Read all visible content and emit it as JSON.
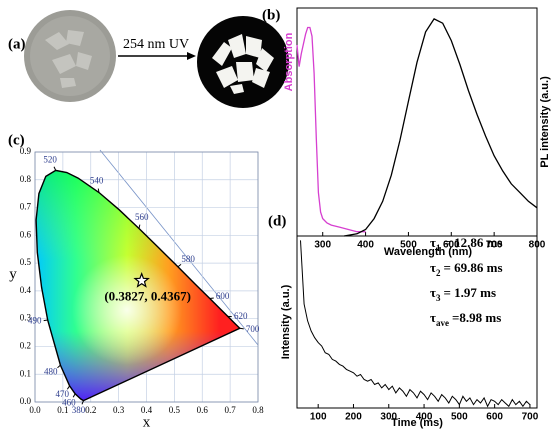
{
  "panel_a": {
    "label": "(a)",
    "arrow_text": "254 nm UV"
  },
  "chart_data": [
    {
      "type": "spectra",
      "label": "(b)",
      "xlabel": "Wavelength (nm)",
      "ylabel": "Absorption",
      "y2label": "PL intensity (a.u.)",
      "xlim": [
        240,
        800
      ],
      "xticks": [
        300,
        400,
        500,
        600,
        700,
        800
      ],
      "ylim": [
        0,
        1.05
      ],
      "y2lim": [
        0,
        1.05
      ],
      "series": [
        {
          "color": "#d63fd0",
          "x": [
            240,
            245,
            250,
            260,
            265,
            270,
            275,
            280,
            285,
            290,
            295,
            300,
            310,
            320,
            340,
            360,
            380,
            400
          ],
          "values": [
            0.88,
            0.78,
            0.84,
            0.93,
            0.96,
            0.96,
            0.92,
            0.75,
            0.45,
            0.2,
            0.11,
            0.08,
            0.06,
            0.05,
            0.04,
            0.03,
            0.02,
            0.02
          ]
        },
        {
          "color": "#000000",
          "axis": "y2",
          "x": [
            350,
            380,
            400,
            420,
            440,
            460,
            480,
            500,
            520,
            540,
            560,
            580,
            600,
            620,
            640,
            660,
            680,
            700,
            720,
            740,
            760,
            780,
            800
          ],
          "values": [
            0.0,
            0.01,
            0.03,
            0.08,
            0.16,
            0.28,
            0.44,
            0.62,
            0.8,
            0.94,
            1.0,
            0.98,
            0.9,
            0.79,
            0.67,
            0.56,
            0.46,
            0.37,
            0.3,
            0.24,
            0.2,
            0.16,
            0.13
          ]
        }
      ]
    },
    {
      "type": "cie",
      "label": "(c)",
      "xlabel": "x",
      "ylabel": "y",
      "xlim": [
        0,
        0.8
      ],
      "ylim": [
        0,
        0.9
      ],
      "xticks": [
        {
          "value": 0,
          "label": "0.0"
        },
        0.1,
        0.2,
        0.3,
        0.4,
        0.5,
        0.6,
        0.7,
        0.8
      ],
      "yticks": [
        {
          "value": 0,
          "label": "0.0"
        },
        0.1,
        0.2,
        0.3,
        0.4,
        0.5,
        0.6,
        0.7,
        0.8,
        0.9
      ],
      "locus": {
        "x": [
          0.1741,
          0.1644,
          0.1566,
          0.144,
          0.1241,
          0.0913,
          0.0454,
          0.0235,
          0.0082,
          0.0039,
          0.0139,
          0.0389,
          0.0743,
          0.1142,
          0.1547,
          0.2296,
          0.3016,
          0.3731,
          0.4441,
          0.5125,
          0.5752,
          0.627,
          0.6658,
          0.6915,
          0.719,
          0.7347
        ],
        "y": [
          0.005,
          0.0109,
          0.0177,
          0.0297,
          0.0578,
          0.1327,
          0.295,
          0.4127,
          0.5384,
          0.6548,
          0.7502,
          0.812,
          0.8338,
          0.8262,
          0.8059,
          0.7543,
          0.6923,
          0.6245,
          0.5547,
          0.4866,
          0.4242,
          0.3725,
          0.334,
          0.3083,
          0.2809,
          0.2653
        ],
        "wavelengths": [
          380,
          null,
          null,
          460,
          470,
          480,
          490,
          null,
          null,
          null,
          null,
          null,
          520,
          null,
          null,
          540,
          null,
          560,
          null,
          580,
          null,
          600,
          null,
          620,
          null,
          700
        ]
      },
      "point": {
        "x": 0.3827,
        "y": 0.4367,
        "label": "(0.3827, 0.4367)"
      }
    },
    {
      "type": "decay",
      "label": "(d)",
      "xlabel": "Time (ms)",
      "ylabel": "Intensity (a.u.)",
      "xlim": [
        40,
        720
      ],
      "xticks": [
        100,
        200,
        300,
        400,
        500,
        600,
        700
      ],
      "ylim": [
        0,
        1.05
      ],
      "series": [
        {
          "color": "#000000",
          "x": [
            50,
            60,
            70,
            80,
            90,
            100,
            110,
            120,
            130,
            140,
            150,
            160,
            170,
            180,
            190,
            200,
            210,
            220,
            230,
            240,
            250,
            260,
            270,
            280,
            290,
            300,
            310,
            320,
            330,
            340,
            350,
            360,
            370,
            380,
            390,
            400,
            410,
            420,
            430,
            440,
            450,
            460,
            470,
            480,
            490,
            500,
            510,
            520,
            530,
            540,
            550,
            560,
            570,
            580,
            590,
            600,
            610,
            620,
            630,
            640,
            650,
            660,
            670,
            680,
            690,
            700
          ],
          "values": [
            1.0,
            0.62,
            0.52,
            0.46,
            0.42,
            0.39,
            0.37,
            0.33,
            0.32,
            0.29,
            0.28,
            0.26,
            0.25,
            0.23,
            0.22,
            0.21,
            0.19,
            0.2,
            0.17,
            0.16,
            0.17,
            0.14,
            0.15,
            0.12,
            0.14,
            0.11,
            0.13,
            0.09,
            0.12,
            0.1,
            0.07,
            0.11,
            0.09,
            0.06,
            0.1,
            0.08,
            0.05,
            0.09,
            0.07,
            0.04,
            0.08,
            0.06,
            0.03,
            0.07,
            0.05,
            0.02,
            0.07,
            0.04,
            0.06,
            0.02,
            0.05,
            0.03,
            0.06,
            0.01,
            0.05,
            0.04,
            0.02,
            0.05,
            0.03,
            0.01,
            0.05,
            0.02,
            0.04,
            0.01,
            0.04,
            0.02
          ]
        }
      ],
      "annotations": [
        {
          "symbol": "τ",
          "sub": "1",
          "text": "=  12.86 ms"
        },
        {
          "symbol": "τ",
          "sub": "2",
          "text": "=  69.86 ms"
        },
        {
          "symbol": "τ",
          "sub": "3",
          "text": "=    1.97 ms"
        },
        {
          "symbol": "τ",
          "sub": "ave",
          "text": "=8.98 ms"
        }
      ]
    }
  ]
}
